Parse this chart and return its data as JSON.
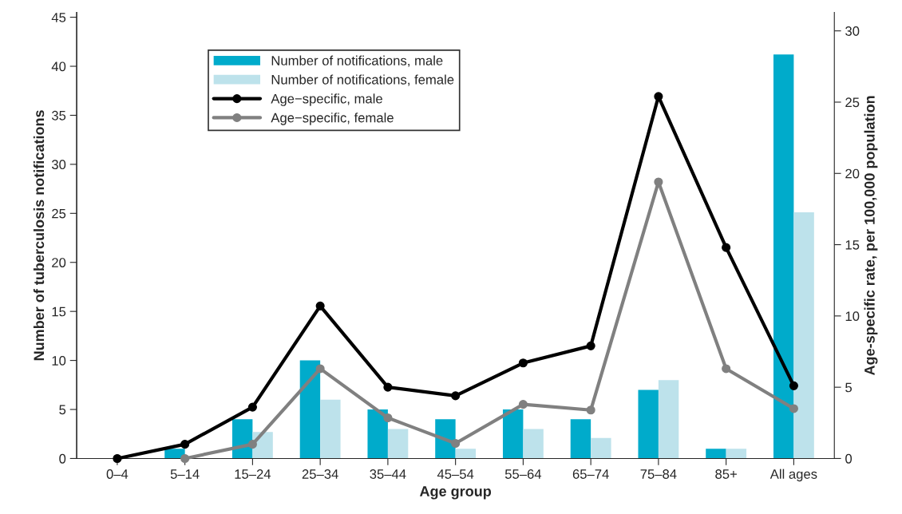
{
  "chart_data": {
    "type": "bar",
    "xlabel": "Age group",
    "ylabel": "Number of tuberculosis notifications",
    "y2label": "Age-specific rate, per 100,000 population",
    "categories": [
      "0–4",
      "5–14",
      "15–24",
      "25–34",
      "35–44",
      "45–54",
      "55–64",
      "65–74",
      "75–84",
      "85+",
      "All ages"
    ],
    "series": [
      {
        "name": "Number of notifications, male",
        "color": "#00abcb",
        "values": [
          0,
          1,
          4,
          10,
          5,
          4,
          5,
          4,
          7,
          1,
          41.2
        ]
      },
      {
        "name": "Number of notifications, female",
        "color": "#bde2eb",
        "values": [
          0,
          0,
          2.7,
          6,
          3,
          1,
          3,
          2.1,
          8,
          1,
          25.1
        ]
      },
      {
        "name": "Age−specific, male",
        "type": "line",
        "axis": "y2",
        "color": "#000000",
        "values": [
          0,
          1.0,
          3.6,
          10.7,
          5.0,
          4.4,
          6.7,
          7.9,
          25.4,
          14.8,
          5.1
        ]
      },
      {
        "name": "Age−specific, female",
        "type": "line",
        "axis": "y2",
        "color": "#808080",
        "values": [
          null,
          0,
          1.0,
          6.3,
          2.85,
          1.06,
          3.8,
          3.4,
          19.4,
          6.3,
          3.5
        ]
      }
    ],
    "ylim": [
      0,
      45.5
    ],
    "yticks": [
      0,
      5,
      10,
      15,
      20,
      25,
      30,
      35,
      40,
      45
    ],
    "y2lim": [
      0,
      31.3
    ],
    "y2ticks": [
      0,
      5,
      10,
      15,
      20,
      25,
      30
    ],
    "marker": "circle",
    "line_style": "solid",
    "grid": false,
    "legend": "top left"
  }
}
